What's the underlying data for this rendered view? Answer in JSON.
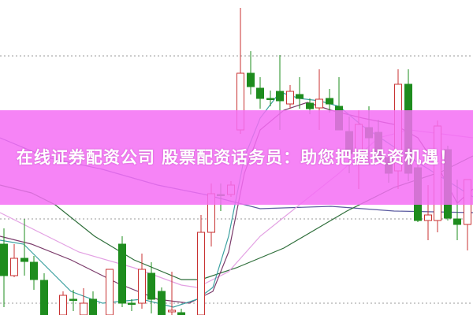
{
  "banner": {
    "title": "在线证券配资公司 股票配资话务员：助您把握投资机遇！",
    "background_color": "#f56ef5"
  },
  "chart_data": {
    "type": "candlestick",
    "title": "",
    "grid": true,
    "colors": {
      "up": "#c83232",
      "down": "#1e8c1e",
      "ma_lines": [
        "#3aa0a0",
        "#7a3a6a",
        "#e3a0e3",
        "#2e6e3a",
        "#5a5aa0"
      ]
    }
  }
}
